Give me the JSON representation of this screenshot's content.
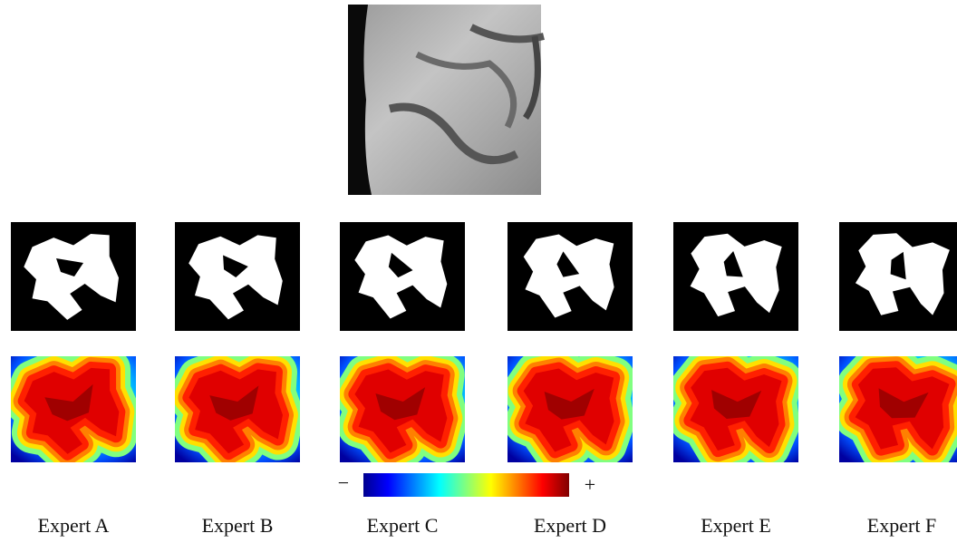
{
  "figure": {
    "colorbar": {
      "min_label": "−",
      "max_label": "+"
    },
    "experts": [
      "Expert A",
      "Expert B",
      "Expert C",
      "Expert D",
      "Expert E",
      "Expert F"
    ]
  }
}
